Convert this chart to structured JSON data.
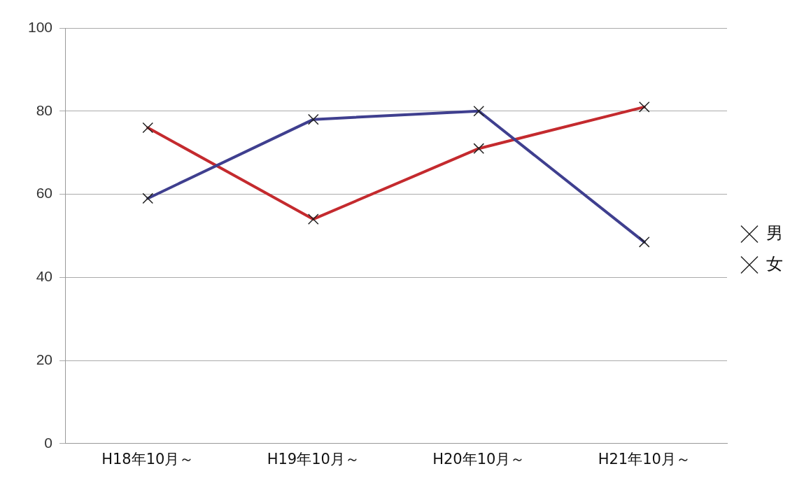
{
  "chart_data": {
    "type": "line",
    "categories": [
      "H18年10月～",
      "H19年10月～",
      "H20年10月～",
      "H21年10月～"
    ],
    "series": [
      {
        "name": "男",
        "color": "#3f3f8f",
        "marker": "cross",
        "values": [
          59,
          78,
          80,
          48.5
        ]
      },
      {
        "name": "女",
        "color": "#c42a2e",
        "marker": "cross",
        "values": [
          76,
          54,
          71,
          81
        ]
      }
    ],
    "ylim": [
      0,
      100
    ],
    "yticks": [
      0,
      20,
      40,
      60,
      80,
      100
    ],
    "grid": "y",
    "legend": "right",
    "line_style": "solid"
  }
}
